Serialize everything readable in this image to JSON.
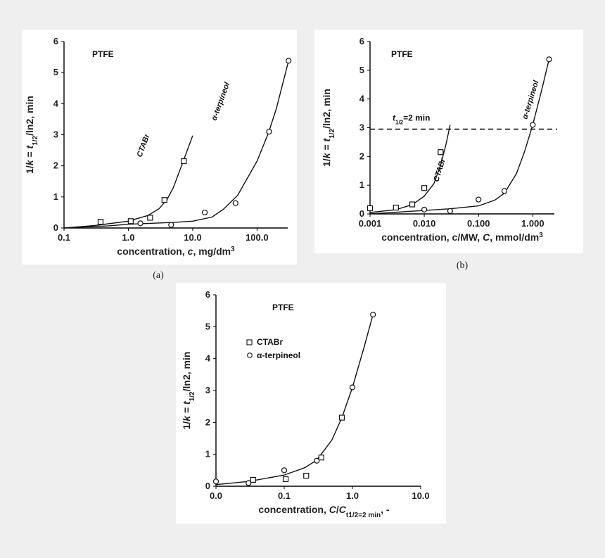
{
  "colors": {
    "page_bg": "#f0efef",
    "panel_bg": "#ffffff",
    "ink": "#111111"
  },
  "captions": {
    "a": "(a)",
    "b": "(b)"
  },
  "chart_data": [
    {
      "id": "a",
      "type": "scatter",
      "xscale": "log",
      "xlim": [
        0.1,
        300
      ],
      "ylim": [
        0,
        6
      ],
      "xticks": [
        0.1,
        1,
        10,
        100
      ],
      "xtick_labels": [
        "0.1",
        "1.0",
        "10.0",
        "100.0"
      ],
      "yticks": [
        0,
        1,
        2,
        3,
        4,
        5,
        6
      ],
      "ylabel_parts": [
        "1/",
        "k",
        " = ",
        "t",
        "1/2",
        "/ln2, min"
      ],
      "xlabel_parts": [
        "concentration, ",
        "c",
        ",  mg/dm",
        "3"
      ],
      "annotations": {
        "material": "PTFE",
        "curve1": "CTABr",
        "curve2": "α-terpineol"
      },
      "series": [
        {
          "name": "CTABr",
          "marker": "square",
          "x": [
            0.37,
            1.09,
            2.18,
            3.64,
            7.28
          ],
          "y": [
            0.2,
            0.22,
            0.33,
            0.9,
            2.15
          ],
          "fit_x": [
            0.1,
            0.3,
            1,
            2,
            3,
            4,
            5,
            7,
            10
          ],
          "fit_y": [
            0,
            0.08,
            0.22,
            0.4,
            0.62,
            0.92,
            1.3,
            2.1,
            2.97
          ]
        },
        {
          "name": "α-terpineol",
          "marker": "circle",
          "x": [
            1.54,
            4.63,
            15.4,
            46.3,
            154,
            309
          ],
          "y": [
            0.15,
            0.1,
            0.5,
            0.8,
            3.1,
            5.38
          ],
          "fit_x": [
            0.1,
            0.5,
            1,
            5,
            10,
            20,
            30,
            50,
            100,
            150,
            200,
            309
          ],
          "fit_y": [
            0,
            0.07,
            0.12,
            0.18,
            0.22,
            0.35,
            0.6,
            1.05,
            2.15,
            3.05,
            3.85,
            5.38
          ]
        }
      ]
    },
    {
      "id": "b",
      "type": "scatter",
      "xscale": "log",
      "xlim": [
        0.001,
        2.5
      ],
      "ylim": [
        0,
        6
      ],
      "xticks": [
        0.001,
        0.01,
        0.1,
        1
      ],
      "xtick_labels": [
        "0.001",
        "0.010",
        "0.100",
        "1.000"
      ],
      "yticks": [
        0,
        1,
        2,
        3,
        4,
        5,
        6
      ],
      "ylabel_parts": [
        "1/",
        "k",
        " = ",
        "t",
        "1/2",
        "/ln2, min"
      ],
      "xlabel_parts": [
        "concentration, c/MW, ",
        "C",
        ", mmol/dm",
        "3"
      ],
      "annotations": {
        "material": "PTFE",
        "curve1": "CTABr",
        "curve2": "α-terpineol",
        "hline_label_main": "t",
        "hline_label_sub": "1/2",
        "hline_label_tail": "=2 min"
      },
      "hline": 2.95,
      "series": [
        {
          "name": "CTABr",
          "marker": "square",
          "x": [
            0.001,
            0.003,
            0.006,
            0.01,
            0.02
          ],
          "y": [
            0.2,
            0.22,
            0.33,
            0.9,
            2.15
          ],
          "fit_x": [
            0.001,
            0.003,
            0.006,
            0.01,
            0.015,
            0.02,
            0.025,
            0.03
          ],
          "fit_y": [
            0.05,
            0.15,
            0.32,
            0.62,
            1.05,
            1.7,
            2.4,
            3.1
          ]
        },
        {
          "name": "α-terpineol",
          "marker": "circle",
          "x": [
            0.01,
            0.03,
            0.1,
            0.3,
            1.0,
            2.0
          ],
          "y": [
            0.15,
            0.1,
            0.5,
            0.8,
            3.1,
            5.38
          ],
          "fit_x": [
            0.001,
            0.01,
            0.03,
            0.1,
            0.2,
            0.3,
            0.5,
            0.7,
            1.0,
            1.5,
            2.0
          ],
          "fit_y": [
            0,
            0.12,
            0.18,
            0.28,
            0.48,
            0.72,
            1.4,
            2.15,
            3.1,
            4.4,
            5.38
          ]
        }
      ]
    },
    {
      "id": "c",
      "type": "scatter",
      "xscale": "log",
      "xlim": [
        0.01,
        10
      ],
      "ylim": [
        0,
        6
      ],
      "xticks": [
        0.01,
        0.1,
        1,
        10
      ],
      "xtick_labels": [
        "0.0",
        "0.1",
        "1.0",
        "10.0"
      ],
      "yticks": [
        0,
        1,
        2,
        3,
        4,
        5,
        6
      ],
      "ylabel_parts": [
        "1/",
        "k",
        " = ",
        "t",
        "1/2",
        "/ln2, min"
      ],
      "xlabel_parts": [
        "concentration, ",
        "C",
        "/",
        "C",
        "t1/2=2 min",
        ", -"
      ],
      "annotations": {
        "material": "PTFE"
      },
      "legend": [
        "CTABr",
        "α-terpineol"
      ],
      "series": [
        {
          "name": "CTABr",
          "marker": "square",
          "x": [
            0.035,
            0.105,
            0.21,
            0.35,
            0.7
          ],
          "y": [
            0.2,
            0.22,
            0.33,
            0.9,
            2.15
          ]
        },
        {
          "name": "α-terpineol",
          "marker": "circle",
          "x": [
            0.01,
            0.03,
            0.1,
            0.3,
            1.0,
            2.0
          ],
          "y": [
            0.15,
            0.1,
            0.5,
            0.8,
            3.1,
            5.38
          ]
        }
      ],
      "fit_x": [
        0.01,
        0.03,
        0.1,
        0.2,
        0.3,
        0.5,
        0.7,
        1.0,
        1.5,
        2.0
      ],
      "fit_y": [
        0.05,
        0.15,
        0.35,
        0.58,
        0.82,
        1.45,
        2.15,
        3.1,
        4.4,
        5.38
      ]
    }
  ]
}
